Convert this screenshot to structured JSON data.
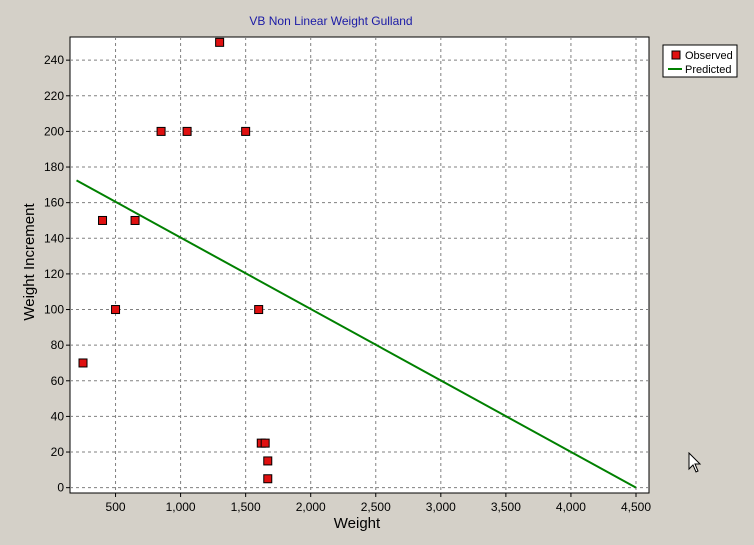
{
  "chart_data": {
    "type": "scatter",
    "title": "VB Non Linear Weight Gulland",
    "xlabel": "Weight",
    "ylabel": "Weight Increment",
    "xlim": [
      150,
      4600
    ],
    "ylim": [
      -3,
      253
    ],
    "x_ticks": [
      500,
      1000,
      1500,
      2000,
      2500,
      3000,
      3500,
      4000,
      4500
    ],
    "x_tick_labels": [
      "500",
      "1,000",
      "1,500",
      "2,000",
      "2,500",
      "3,000",
      "3,500",
      "4,000",
      "4,500"
    ],
    "y_ticks": [
      0,
      20,
      40,
      60,
      80,
      100,
      120,
      140,
      160,
      180,
      200,
      220,
      240
    ],
    "y_tick_labels": [
      "0",
      "20",
      "40",
      "60",
      "80",
      "100",
      "120",
      "140",
      "160",
      "180",
      "200",
      "220",
      "240"
    ],
    "grid": true,
    "legend_position": "top-right",
    "series": [
      {
        "name": "Observed",
        "kind": "scatter",
        "color": "#e01010",
        "marker": "square",
        "points": [
          [
            250,
            70
          ],
          [
            400,
            150
          ],
          [
            500,
            100
          ],
          [
            650,
            150
          ],
          [
            850,
            200
          ],
          [
            1050,
            200
          ],
          [
            1300,
            250
          ],
          [
            1500,
            200
          ],
          [
            1600,
            100
          ],
          [
            1620,
            25
          ],
          [
            1650,
            25
          ],
          [
            1670,
            15
          ],
          [
            1670,
            5
          ]
        ]
      },
      {
        "name": "Predicted",
        "kind": "line",
        "color": "#008000",
        "points": [
          [
            200,
            172.5
          ],
          [
            4500,
            0
          ]
        ]
      }
    ]
  }
}
